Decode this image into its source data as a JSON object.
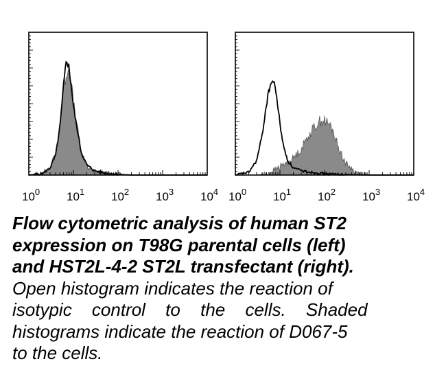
{
  "chart_data": [
    {
      "type": "area",
      "panel": "left",
      "x_scale": "log",
      "xlim": [
        1,
        10000
      ],
      "x_tick_labels": [
        {
          "base": "10",
          "exp": "0"
        },
        {
          "base": "10",
          "exp": "1"
        },
        {
          "base": "10",
          "exp": "2"
        },
        {
          "base": "10",
          "exp": "3"
        },
        {
          "base": "10",
          "exp": "4"
        }
      ],
      "ylim": [
        0,
        1
      ],
      "series": [
        {
          "style": "open",
          "x": [
            1,
            2,
            3,
            4,
            5,
            6,
            7,
            8,
            9,
            10,
            12,
            15,
            20,
            30,
            50,
            100,
            200,
            1000,
            10000
          ],
          "y": [
            0.0,
            0.01,
            0.05,
            0.14,
            0.34,
            0.62,
            0.82,
            0.74,
            0.62,
            0.48,
            0.33,
            0.16,
            0.07,
            0.03,
            0.015,
            0.005,
            0.0,
            0.0,
            0.0
          ]
        },
        {
          "style": "shaded",
          "color": "#8a8a8a",
          "x": [
            1,
            2,
            3,
            4,
            5,
            6,
            7,
            8,
            9,
            10,
            12,
            15,
            20,
            30,
            50,
            100,
            200,
            1000,
            10000
          ],
          "y": [
            0.0,
            0.01,
            0.05,
            0.15,
            0.36,
            0.6,
            0.72,
            0.78,
            0.64,
            0.5,
            0.34,
            0.15,
            0.06,
            0.03,
            0.015,
            0.005,
            0.0,
            0.0,
            0.0
          ]
        }
      ]
    },
    {
      "type": "area",
      "panel": "right",
      "x_scale": "log",
      "xlim": [
        1,
        10000
      ],
      "x_tick_labels": [
        {
          "base": "10",
          "exp": "0"
        },
        {
          "base": "10",
          "exp": "1"
        },
        {
          "base": "10",
          "exp": "2"
        },
        {
          "base": "10",
          "exp": "3"
        },
        {
          "base": "10",
          "exp": "4"
        }
      ],
      "ylim": [
        0,
        1
      ],
      "series": [
        {
          "style": "open",
          "x": [
            1,
            2,
            3,
            4,
            5,
            6,
            7,
            8,
            9,
            10,
            12,
            15,
            20,
            30,
            50,
            100,
            200,
            1000,
            10000
          ],
          "y": [
            0.0,
            0.02,
            0.1,
            0.28,
            0.5,
            0.63,
            0.66,
            0.6,
            0.48,
            0.36,
            0.2,
            0.1,
            0.05,
            0.03,
            0.02,
            0.01,
            0.005,
            0.0,
            0.0
          ]
        },
        {
          "style": "shaded",
          "color": "#8a8a8a",
          "x": [
            1,
            3,
            5,
            7,
            10,
            15,
            20,
            30,
            40,
            50,
            60,
            80,
            100,
            130,
            160,
            200,
            300,
            500,
            1000,
            10000
          ],
          "y": [
            0.0,
            0.0,
            0.01,
            0.03,
            0.06,
            0.09,
            0.12,
            0.18,
            0.26,
            0.3,
            0.34,
            0.38,
            0.38,
            0.35,
            0.3,
            0.2,
            0.08,
            0.02,
            0.0,
            0.0
          ]
        }
      ]
    }
  ],
  "caption": {
    "bold_lines": [
      "Flow cytometric analysis of human ST2",
      "expression on T98G parental cells (left)",
      "and HST2L-4-2 ST2L transfectant (right)."
    ],
    "normal_lines": [
      "Open histogram indicates the reaction of",
      "isotypic control to the cells. Shaded",
      "histograms indicate the reaction of D067-5",
      "to the cells."
    ]
  }
}
